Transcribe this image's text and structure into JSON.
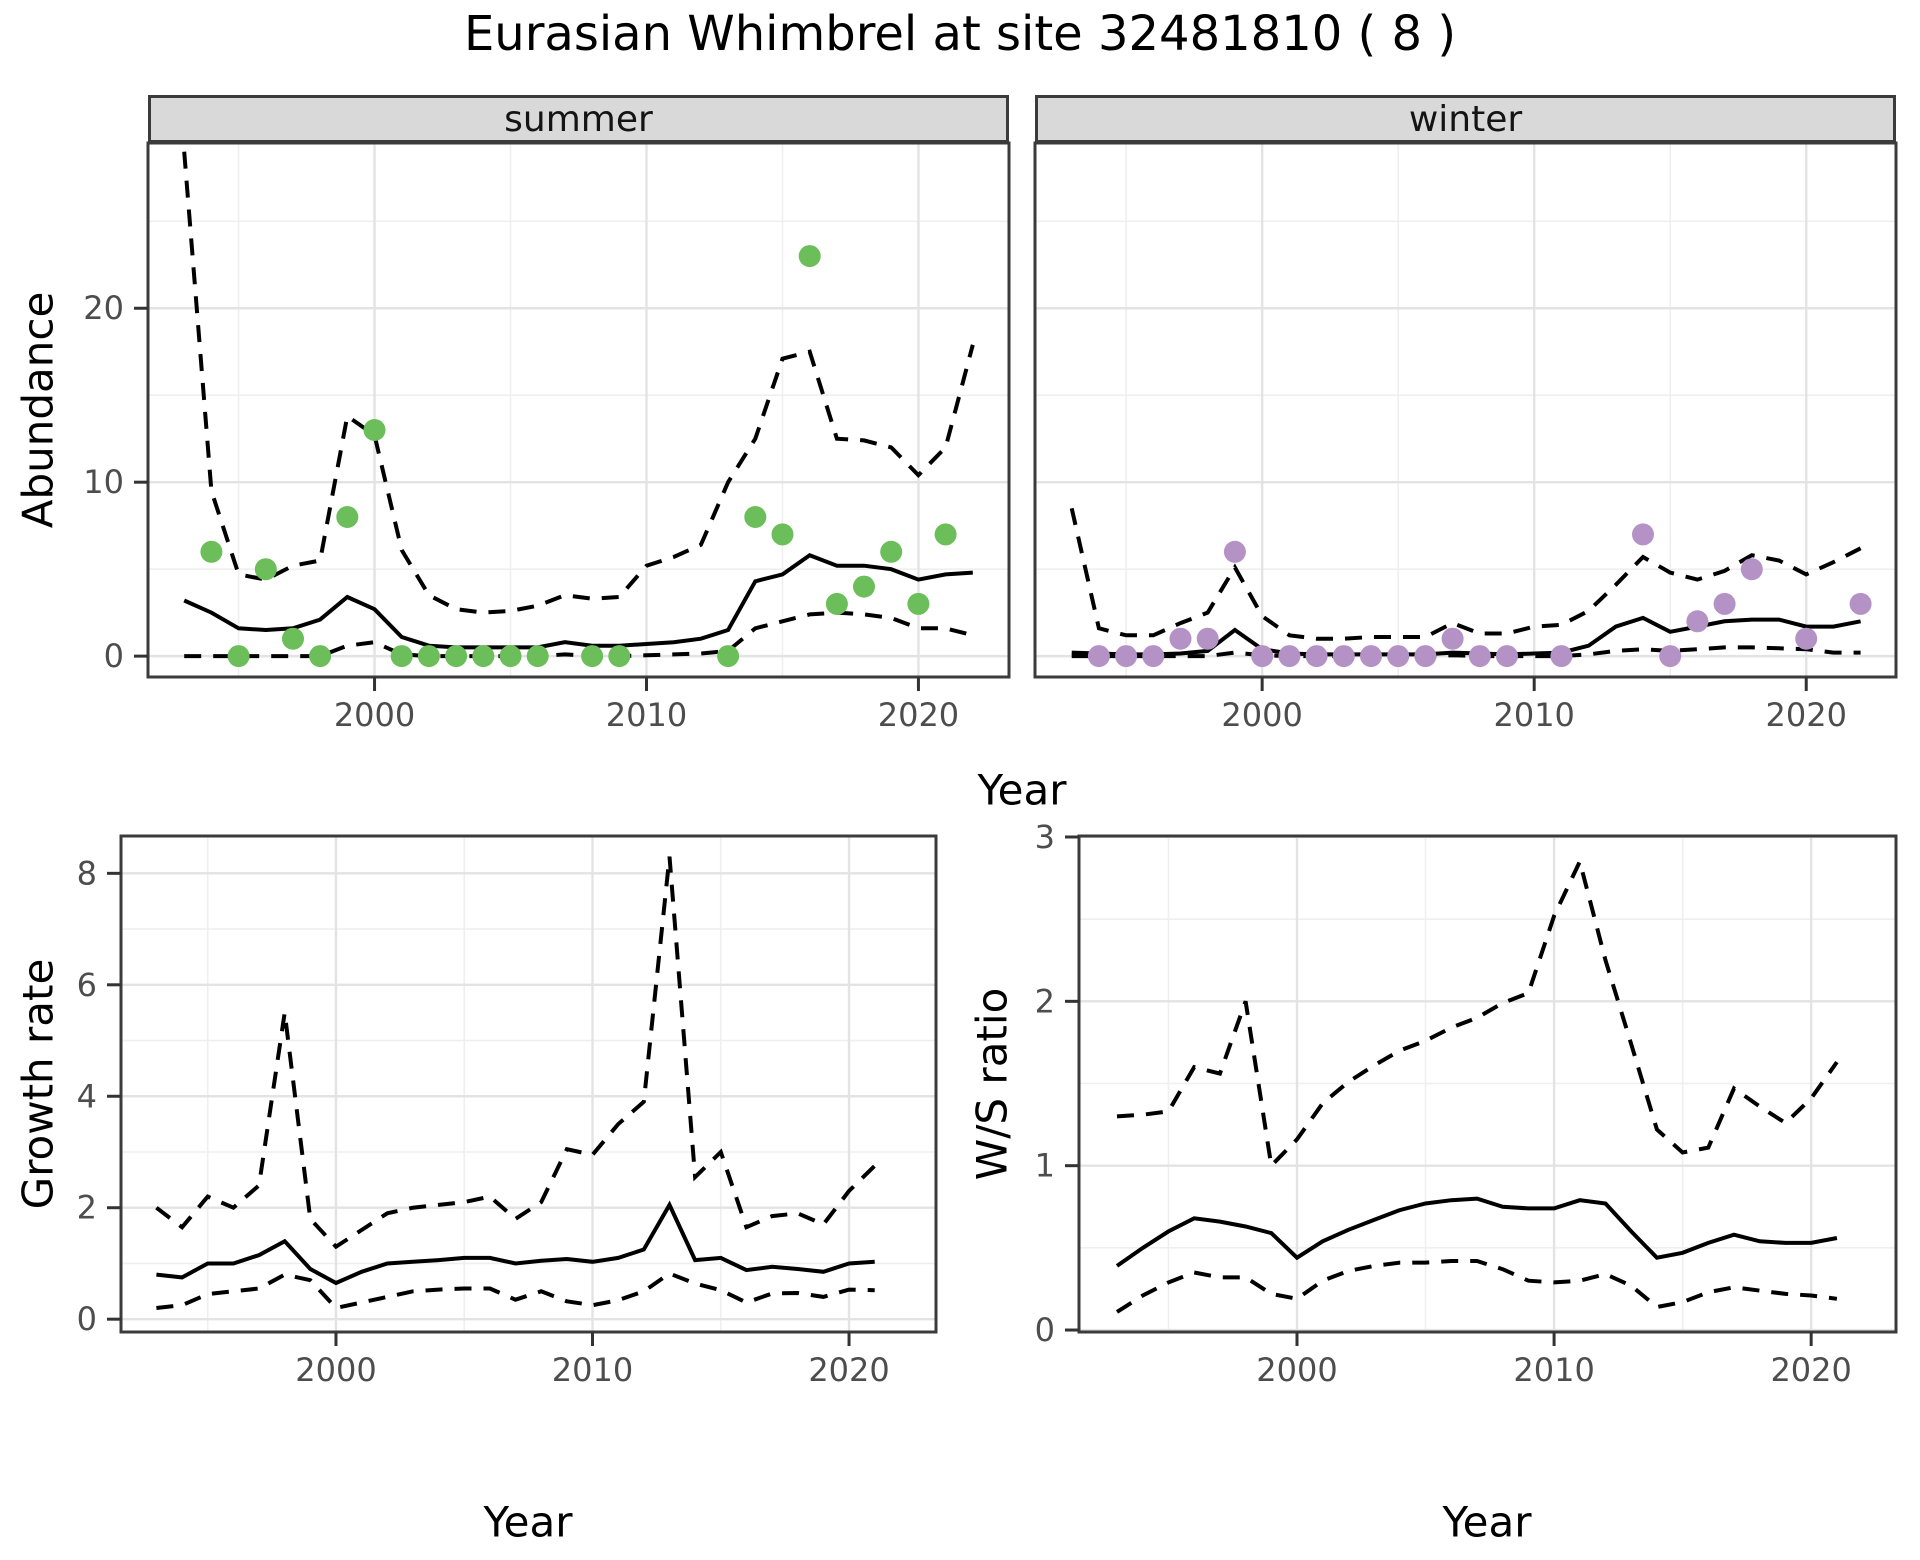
{
  "title": "Eurasian Whimbrel at site 32481810 ( 8 )",
  "colors": {
    "summer_point": "#6BBE59",
    "winter_point": "#B592C6",
    "line": "#000000",
    "grid_major": "#e3e3e3",
    "grid_minor": "#efefef",
    "panel_border": "#3b3b3b",
    "strip_background": "#d9d9d9",
    "tick_text": "#4d4d4d"
  },
  "chart_data": [
    {
      "id": "abundance_summer",
      "type": "line",
      "facet_label": "summer",
      "xlabel": "Year",
      "ylabel": "Abundance",
      "xlim": [
        1991.67,
        2023.33
      ],
      "ylim": [
        -1.2,
        29.5
      ],
      "xticks": [
        2000,
        2010,
        2020
      ],
      "xticks_minor": [
        1995,
        2005,
        2015
      ],
      "yticks": [
        0,
        10,
        20
      ],
      "yticks_minor": [
        5,
        15,
        25
      ],
      "x": [
        1993,
        1994,
        1995,
        1996,
        1997,
        1998,
        1999,
        2000,
        2001,
        2002,
        2003,
        2004,
        2005,
        2006,
        2007,
        2008,
        2009,
        2010,
        2011,
        2012,
        2013,
        2014,
        2015,
        2016,
        2017,
        2018,
        2019,
        2020,
        2021,
        2022
      ],
      "series": [
        {
          "name": "lower_ci",
          "style": "dashed",
          "values": [
            0,
            0,
            0,
            0,
            0,
            0,
            0.6,
            0.8,
            0.1,
            0,
            0,
            0,
            0,
            0,
            0.1,
            0,
            0,
            0.05,
            0.1,
            0.15,
            0.3,
            1.6,
            2.0,
            2.4,
            2.5,
            2.4,
            2.2,
            1.6,
            1.6,
            1.2
          ]
        },
        {
          "name": "upper_ci",
          "style": "dashed",
          "values": [
            29.0,
            9.5,
            4.7,
            4.4,
            5.2,
            5.5,
            13.8,
            12.7,
            6.1,
            3.5,
            2.7,
            2.5,
            2.6,
            2.9,
            3.5,
            3.3,
            3.4,
            5.2,
            5.7,
            6.4,
            10.0,
            12.5,
            17.1,
            17.5,
            12.5,
            12.4,
            12.0,
            10.4,
            12.0,
            17.9
          ]
        },
        {
          "name": "mean",
          "style": "solid",
          "values": [
            3.2,
            2.5,
            1.6,
            1.5,
            1.6,
            2.1,
            3.4,
            2.7,
            1.1,
            0.6,
            0.5,
            0.5,
            0.5,
            0.5,
            0.8,
            0.6,
            0.6,
            0.7,
            0.8,
            1.0,
            1.5,
            4.3,
            4.7,
            5.8,
            5.2,
            5.2,
            5.0,
            4.4,
            4.7,
            4.8
          ]
        }
      ],
      "points": {
        "x": [
          1994,
          1995,
          1996,
          1997,
          1998,
          1999,
          2000,
          2001,
          2002,
          2003,
          2004,
          2005,
          2006,
          2008,
          2009,
          2013,
          2014,
          2015,
          2016,
          2017,
          2018,
          2019,
          2020,
          2021
        ],
        "y": [
          6,
          0,
          5,
          1,
          0,
          8,
          13,
          0,
          0,
          0,
          0,
          0,
          0,
          0,
          0,
          0,
          8,
          7,
          23,
          3,
          4,
          6,
          3,
          7
        ],
        "color": "#6BBE59"
      }
    },
    {
      "id": "abundance_winter",
      "type": "line",
      "facet_label": "winter",
      "xlabel": "Year",
      "ylabel": "Abundance",
      "xlim": [
        1991.65,
        2023.3
      ],
      "ylim": [
        -1.2,
        29.5
      ],
      "xticks": [
        2000,
        2010,
        2020
      ],
      "xticks_minor": [
        1995,
        2005,
        2015
      ],
      "yticks": [
        0,
        10,
        20
      ],
      "yticks_minor": [
        5,
        15,
        25
      ],
      "x": [
        1993,
        1994,
        1995,
        1996,
        1997,
        1998,
        1999,
        2000,
        2001,
        2002,
        2003,
        2004,
        2005,
        2006,
        2007,
        2008,
        2009,
        2010,
        2011,
        2012,
        2013,
        2014,
        2015,
        2016,
        2017,
        2018,
        2019,
        2020,
        2021,
        2022
      ],
      "series": [
        {
          "name": "lower_ci",
          "style": "dashed",
          "values": [
            0,
            0,
            0,
            0,
            0,
            0,
            0.2,
            0.05,
            0,
            0,
            0,
            0,
            0,
            0,
            0.05,
            0,
            0,
            0,
            0,
            0.1,
            0.3,
            0.4,
            0.3,
            0.4,
            0.5,
            0.5,
            0.45,
            0.4,
            0.2,
            0.2
          ]
        },
        {
          "name": "upper_ci",
          "style": "dashed",
          "values": [
            8.5,
            1.6,
            1.2,
            1.2,
            1.9,
            2.5,
            5.1,
            2.3,
            1.2,
            1.0,
            1.0,
            1.1,
            1.1,
            1.1,
            1.9,
            1.3,
            1.3,
            1.7,
            1.8,
            2.6,
            4.1,
            5.7,
            4.8,
            4.4,
            4.9,
            5.8,
            5.5,
            4.7,
            5.4,
            6.2
          ]
        },
        {
          "name": "mean",
          "style": "solid",
          "values": [
            0.2,
            0.15,
            0.1,
            0.1,
            0.15,
            0.3,
            1.5,
            0.4,
            0.15,
            0.1,
            0.1,
            0.1,
            0.1,
            0.1,
            0.2,
            0.15,
            0.1,
            0.15,
            0.2,
            0.6,
            1.7,
            2.2,
            1.4,
            1.7,
            2.0,
            2.1,
            2.1,
            1.7,
            1.7,
            2.0
          ]
        }
      ],
      "points": {
        "x": [
          1994,
          1995,
          1996,
          1997,
          1998,
          1999,
          2000,
          2001,
          2002,
          2003,
          2004,
          2005,
          2006,
          2007,
          2008,
          2009,
          2011,
          2014,
          2015,
          2016,
          2017,
          2018,
          2020,
          2022
        ],
        "y": [
          0,
          0,
          0,
          1,
          1,
          6,
          0,
          0,
          0,
          0,
          0,
          0,
          0,
          1,
          0,
          0,
          0,
          7,
          0,
          2,
          3,
          5,
          1,
          3
        ],
        "color": "#B592C6"
      }
    },
    {
      "id": "growth_rate",
      "type": "line",
      "facet_label": "",
      "xlabel": "Year",
      "ylabel": "Growth rate",
      "xlim": [
        1991.62,
        2023.39
      ],
      "ylim": [
        -0.23,
        8.67
      ],
      "xticks": [
        2000,
        2010,
        2020
      ],
      "xticks_minor": [
        1995,
        2005,
        2015
      ],
      "yticks": [
        0,
        2,
        4,
        6,
        8
      ],
      "yticks_minor": [
        1,
        3,
        5,
        7
      ],
      "x": [
        1993,
        1994,
        1995,
        1996,
        1997,
        1998,
        1999,
        2000,
        2001,
        2002,
        2003,
        2004,
        2005,
        2006,
        2007,
        2008,
        2009,
        2010,
        2011,
        2012,
        2013,
        2014,
        2015,
        2016,
        2017,
        2018,
        2019,
        2020,
        2021
      ],
      "series": [
        {
          "name": "lower_ci",
          "style": "dashed",
          "values": [
            0.2,
            0.25,
            0.45,
            0.5,
            0.55,
            0.8,
            0.7,
            0.2,
            0.3,
            0.4,
            0.5,
            0.53,
            0.55,
            0.55,
            0.35,
            0.5,
            0.32,
            0.25,
            0.34,
            0.5,
            0.82,
            0.64,
            0.52,
            0.3,
            0.46,
            0.47,
            0.4,
            0.53,
            0.52
          ]
        },
        {
          "name": "upper_ci",
          "style": "dashed",
          "values": [
            2.0,
            1.65,
            2.2,
            2.0,
            2.4,
            5.5,
            1.8,
            1.3,
            1.6,
            1.9,
            2.0,
            2.05,
            2.1,
            2.2,
            1.8,
            2.1,
            3.05,
            2.95,
            3.5,
            3.9,
            8.3,
            2.55,
            3.0,
            1.65,
            1.85,
            1.9,
            1.7,
            2.3,
            2.75
          ]
        },
        {
          "name": "mean",
          "style": "solid",
          "values": [
            0.8,
            0.75,
            1.0,
            1.0,
            1.15,
            1.4,
            0.9,
            0.65,
            0.85,
            1.0,
            1.03,
            1.06,
            1.1,
            1.1,
            1.0,
            1.05,
            1.08,
            1.03,
            1.1,
            1.25,
            2.05,
            1.06,
            1.1,
            0.88,
            0.94,
            0.9,
            0.85,
            1.0,
            1.03
          ]
        }
      ],
      "points": {
        "x": [],
        "y": [],
        "color": "#000000"
      }
    },
    {
      "id": "ws_ratio",
      "type": "line",
      "facet_label": "",
      "xlabel": "Year",
      "ylabel": "W/S ratio",
      "xlim": [
        1991.52,
        2023.3
      ],
      "ylim": [
        -0.012,
        3.006
      ],
      "xticks": [
        2000,
        2010,
        2020
      ],
      "xticks_minor": [
        1995,
        2005,
        2015
      ],
      "yticks": [
        0,
        1,
        2,
        3
      ],
      "yticks_minor": [
        0.5,
        1.5,
        2.5
      ],
      "x": [
        1993,
        1994,
        1995,
        1996,
        1997,
        1998,
        1999,
        2000,
        2001,
        2002,
        2003,
        2004,
        2005,
        2006,
        2007,
        2008,
        2009,
        2010,
        2011,
        2012,
        2013,
        2014,
        2015,
        2016,
        2017,
        2018,
        2019,
        2020,
        2021
      ],
      "series": [
        {
          "name": "lower_ci",
          "style": "dashed",
          "values": [
            0.11,
            0.21,
            0.29,
            0.35,
            0.32,
            0.32,
            0.22,
            0.19,
            0.3,
            0.36,
            0.39,
            0.41,
            0.41,
            0.42,
            0.42,
            0.37,
            0.3,
            0.29,
            0.3,
            0.34,
            0.27,
            0.14,
            0.17,
            0.23,
            0.26,
            0.24,
            0.22,
            0.21,
            0.19
          ]
        },
        {
          "name": "upper_ci",
          "style": "dashed",
          "values": [
            1.3,
            1.31,
            1.33,
            1.6,
            1.56,
            2.0,
            1.0,
            1.16,
            1.38,
            1.51,
            1.61,
            1.7,
            1.76,
            1.84,
            1.9,
            1.99,
            2.05,
            2.52,
            2.85,
            2.25,
            1.74,
            1.22,
            1.08,
            1.11,
            1.47,
            1.36,
            1.26,
            1.41,
            1.63
          ]
        },
        {
          "name": "mean",
          "style": "solid",
          "values": [
            0.39,
            0.5,
            0.6,
            0.68,
            0.66,
            0.63,
            0.59,
            0.44,
            0.54,
            0.61,
            0.67,
            0.73,
            0.77,
            0.79,
            0.8,
            0.75,
            0.74,
            0.74,
            0.79,
            0.77,
            0.6,
            0.44,
            0.47,
            0.53,
            0.58,
            0.54,
            0.53,
            0.53,
            0.56
          ]
        }
      ],
      "points": {
        "x": [],
        "y": [],
        "color": "#000000"
      }
    }
  ]
}
